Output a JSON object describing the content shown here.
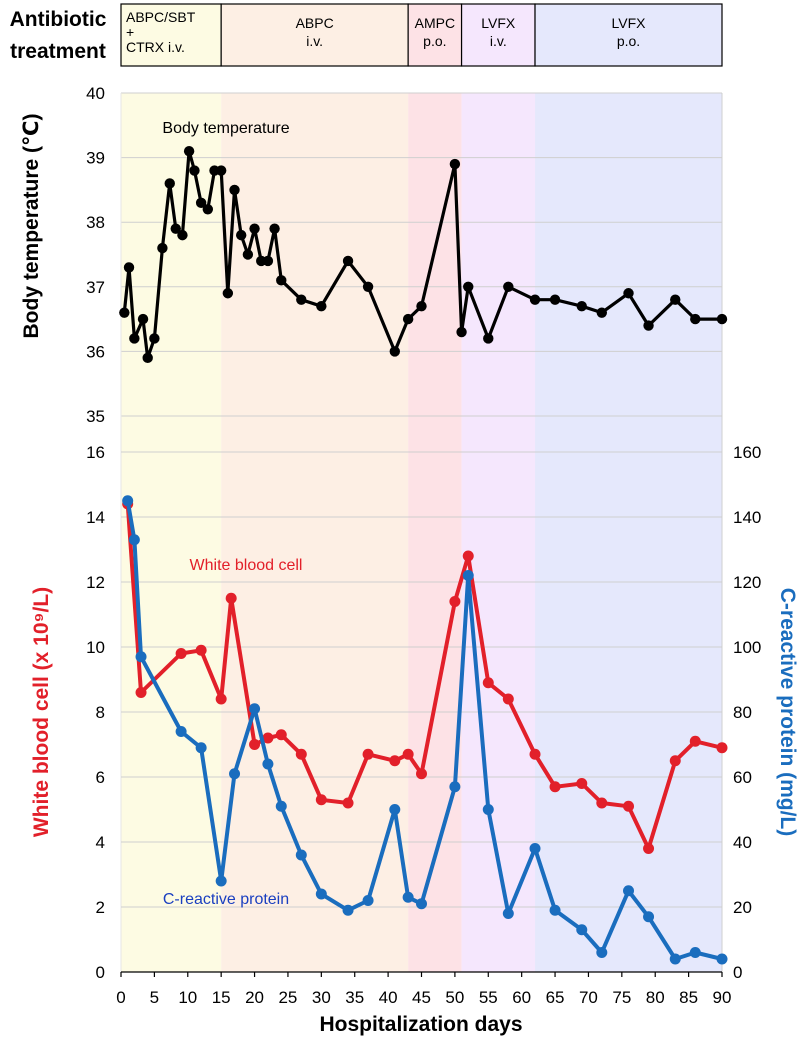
{
  "header": {
    "label_line1": "Antibiotic",
    "label_line2": "treatment"
  },
  "phases": [
    {
      "name": "ABPC/SBT + CTRX i.v.",
      "lines": [
        "ABPC/SBT",
        "+",
        "CTRX i.v."
      ],
      "start": 0,
      "end": 15,
      "color": "#fdfbe3"
    },
    {
      "name": "ABPC i.v.",
      "lines": [
        "ABPC",
        "i.v."
      ],
      "start": 15,
      "end": 43,
      "color": "#fdefe4"
    },
    {
      "name": "AMPC p.o.",
      "lines": [
        "AMPC",
        "p.o."
      ],
      "start": 43,
      "end": 51,
      "color": "#fde2e6"
    },
    {
      "name": "LVFX i.v.",
      "lines": [
        "LVFX",
        "i.v."
      ],
      "start": 51,
      "end": 62,
      "color": "#f5e7fd"
    },
    {
      "name": "LVFX p.o.",
      "lines": [
        "LVFX",
        "p.o."
      ],
      "start": 62,
      "end": 90,
      "color": "#e5e8fc"
    }
  ],
  "chart_data": [
    {
      "type": "line",
      "title": "Body temperature",
      "xlabel": "Hospitalization days",
      "ylabel": "Body temperature (℃)",
      "xlim": [
        0,
        90
      ],
      "ylim": [
        35,
        40
      ],
      "yticks": [
        "35",
        "36",
        "37",
        "38",
        "39",
        "40"
      ],
      "grid": true,
      "series": [
        {
          "name": "Body temperature",
          "color": "#000000",
          "x": [
            0.5,
            1.2,
            2,
            3.3,
            4,
            5,
            6.2,
            7.3,
            8.2,
            9.2,
            10.2,
            11,
            12,
            13,
            14,
            15,
            16,
            17,
            18,
            19,
            20,
            21,
            22,
            23,
            24,
            27,
            30,
            34,
            37,
            41,
            43,
            45,
            50,
            51,
            52,
            55,
            58,
            62,
            65,
            69,
            72,
            76,
            79,
            83,
            86,
            90
          ],
          "y": [
            36.6,
            37.3,
            36.2,
            36.5,
            35.9,
            36.2,
            37.6,
            38.6,
            37.9,
            37.8,
            39.1,
            38.8,
            38.3,
            38.2,
            38.8,
            38.8,
            36.9,
            38.5,
            37.8,
            37.5,
            37.9,
            37.4,
            37.4,
            37.9,
            37.1,
            36.8,
            36.7,
            37.4,
            37.0,
            36.0,
            36.5,
            36.7,
            38.9,
            36.3,
            37.0,
            36.2,
            37.0,
            36.8,
            36.8,
            36.7,
            36.6,
            36.9,
            36.4,
            36.8,
            36.5,
            36.5
          ]
        }
      ]
    },
    {
      "type": "line",
      "xlabel": "Hospitalization days",
      "ylabel_left": "White blood cell (x 10⁹/L)",
      "ylabel_right": "C-reactive protein (mg/L)",
      "xlim": [
        0,
        90
      ],
      "xticks": [
        "0",
        "5",
        "10",
        "15",
        "20",
        "25",
        "30",
        "35",
        "40",
        "45",
        "50",
        "55",
        "60",
        "65",
        "70",
        "75",
        "80",
        "85",
        "90"
      ],
      "ylim_left": [
        0,
        16
      ],
      "yticks_left": [
        "0",
        "2",
        "4",
        "6",
        "8",
        "10",
        "12",
        "14",
        "16"
      ],
      "ylim_right": [
        0,
        160
      ],
      "yticks_right": [
        "0",
        "20",
        "40",
        "60",
        "80",
        "100",
        "120",
        "140",
        "160"
      ],
      "grid": true,
      "series": [
        {
          "name": "White blood cell",
          "axis": "left",
          "color": "#e2202a",
          "x": [
            1,
            3,
            9,
            12,
            15,
            16.5,
            20,
            22,
            24,
            27,
            30,
            34,
            37,
            41,
            43,
            45,
            50,
            52,
            55,
            58,
            62,
            65,
            69,
            72,
            76,
            79,
            83,
            86,
            90
          ],
          "y": [
            14.4,
            8.6,
            9.8,
            9.9,
            8.4,
            11.5,
            7.0,
            7.2,
            7.3,
            6.7,
            5.3,
            5.2,
            6.7,
            6.5,
            6.7,
            6.1,
            11.4,
            12.8,
            8.9,
            8.4,
            6.7,
            5.7,
            5.8,
            5.2,
            5.1,
            3.8,
            6.5,
            7.1,
            6.9
          ]
        },
        {
          "name": "C-reactive protein",
          "axis": "right",
          "color": "#1a6dbe",
          "x": [
            1,
            2,
            3,
            9,
            12,
            15,
            17,
            20,
            22,
            24,
            27,
            30,
            34,
            37,
            41,
            43,
            45,
            50,
            52,
            55,
            58,
            62,
            65,
            69,
            72,
            76,
            79,
            83,
            86,
            90
          ],
          "y": [
            145,
            133,
            97,
            74,
            69,
            28,
            61,
            81,
            64,
            51,
            36,
            24,
            19,
            22,
            50,
            23,
            21,
            57,
            122,
            50,
            18,
            38,
            19,
            13,
            6,
            25,
            17,
            4,
            6,
            4
          ]
        }
      ]
    }
  ]
}
